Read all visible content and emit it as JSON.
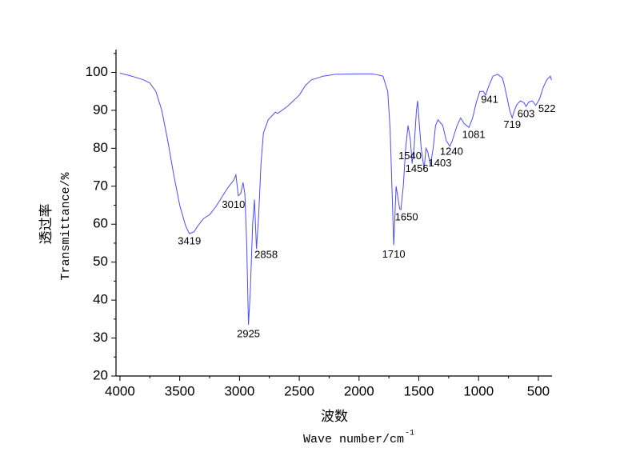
{
  "chart_data": {
    "type": "line",
    "y_label_cn": "透过率",
    "y_label": "Transmittance/%",
    "x_label_cn": "波数",
    "x_label": "Wave number/cm",
    "x_label_sup": "-1",
    "color": "#4b4bff",
    "x": [
      4000,
      3900,
      3800,
      3750,
      3700,
      3650,
      3600,
      3550,
      3500,
      3450,
      3419,
      3380,
      3350,
      3300,
      3250,
      3200,
      3150,
      3100,
      3050,
      3030,
      3010,
      2990,
      2970,
      2955,
      2940,
      2925,
      2910,
      2890,
      2875,
      2858,
      2840,
      2820,
      2800,
      2760,
      2700,
      2680,
      2600,
      2500,
      2450,
      2400,
      2300,
      2200,
      2000,
      1900,
      1850,
      1800,
      1760,
      1740,
      1720,
      1710,
      1700,
      1690,
      1680,
      1660,
      1650,
      1630,
      1610,
      1590,
      1570,
      1556,
      1540,
      1520,
      1510,
      1495,
      1480,
      1456,
      1440,
      1425,
      1403,
      1380,
      1360,
      1340,
      1300,
      1270,
      1240,
      1220,
      1180,
      1150,
      1120,
      1081,
      1050,
      1020,
      990,
      960,
      941,
      920,
      880,
      840,
      800,
      780,
      740,
      719,
      700,
      680,
      650,
      620,
      603,
      580,
      550,
      522,
      490,
      460,
      430,
      400,
      390
    ],
    "values": [
      99.8,
      99,
      98,
      97.2,
      95,
      90,
      82,
      73,
      65,
      59.5,
      57.5,
      58,
      59.5,
      61.5,
      62.5,
      64.5,
      67,
      69.5,
      71.5,
      73,
      67.5,
      68,
      71,
      68,
      55,
      33.5,
      42,
      60,
      66.5,
      53.5,
      62,
      76,
      84,
      87.5,
      89.5,
      89.2,
      91,
      94,
      96.5,
      98,
      99,
      99.5,
      99.6,
      99.6,
      99.4,
      99,
      95,
      85,
      65,
      54.5,
      62,
      70,
      68,
      64,
      63.8,
      70,
      80,
      86,
      82,
      76,
      80,
      90,
      92.5,
      86,
      80,
      74.5,
      80,
      79,
      75.5,
      80,
      86,
      87.5,
      86,
      82,
      80.5,
      82,
      86,
      88,
      86.5,
      85.5,
      88,
      92,
      95,
      95,
      94,
      96,
      99,
      99.5,
      98.5,
      96,
      90,
      88,
      90,
      91.5,
      92.5,
      92,
      91,
      92.2,
      92.5,
      91.3,
      93,
      96,
      98,
      99,
      98
    ],
    "peaks": {
      "x": [
        3419,
        3010,
        2925,
        2858,
        1710,
        1650,
        1540,
        1456,
        1403,
        1240,
        1081,
        941,
        719,
        603,
        522
      ],
      "y": [
        57.5,
        67.5,
        33.5,
        53.5,
        54.5,
        63.8,
        80,
        74.5,
        75.5,
        80.5,
        85.5,
        94,
        88,
        91,
        91.3
      ]
    },
    "xlim": [
      4033,
      386
    ],
    "xticks": [
      4000,
      3500,
      3000,
      2500,
      2000,
      1500,
      1000,
      500
    ],
    "xminorticks": [
      3750,
      3250,
      2750,
      2250,
      1750,
      1250,
      750
    ],
    "ylim": [
      20,
      106
    ],
    "yticks": [
      20,
      30,
      40,
      50,
      60,
      70,
      80,
      90,
      100
    ],
    "yminorticks": [
      25,
      35,
      45,
      55,
      65,
      75,
      85,
      95,
      105
    ]
  }
}
